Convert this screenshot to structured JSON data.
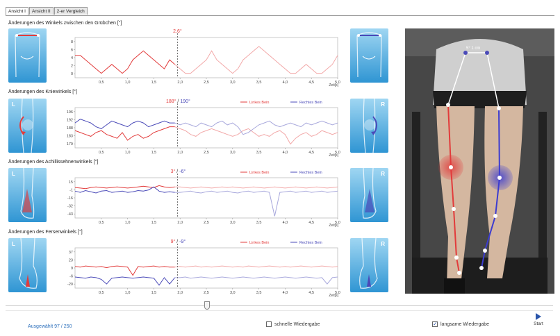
{
  "tabs": [
    {
      "label": "Ansicht I"
    },
    {
      "label": "Ansicht II"
    },
    {
      "label": "2-er Vergleich"
    }
  ],
  "panels": [
    {
      "title": "Änderungen des Winkels zwischen den Grübchen [°]",
      "cursor_value": "2,6°",
      "left_letter": "",
      "right_letter": "",
      "legend": []
    },
    {
      "title": "Änderungen des Kniewinkels [°]",
      "cursor_value_left": "188°",
      "cursor_value_sep": " / ",
      "cursor_value_right": "190°",
      "left_letter": "L",
      "right_letter": "R",
      "legend": [
        "Linkes Bein",
        "Rechtes Bein"
      ]
    },
    {
      "title": "Änderungen des Achillissehnenwinkels [°]",
      "cursor_value_left": "3°",
      "cursor_value_sep": " / ",
      "cursor_value_right": "-6°",
      "left_letter": "L",
      "right_letter": "R",
      "legend": [
        "Linkes Bein",
        "Rechtes Bein"
      ]
    },
    {
      "title": "Änderungen des Fersenwinkels [°]",
      "cursor_value_left": "9°",
      "cursor_value_sep": " / ",
      "cursor_value_right": "-9°",
      "left_letter": "L",
      "right_letter": "R",
      "legend": [
        "Linkes Bein",
        "Rechtes Bein"
      ]
    }
  ],
  "x_axis": {
    "ticks": [
      "0,5",
      "1,0",
      "1,5",
      "2,0",
      "2,5",
      "3,0",
      "3,5",
      "4,0",
      "4,5",
      "5,0"
    ],
    "unit": "Zeit[s]"
  },
  "y_ticks": [
    [
      "8",
      "6",
      "4",
      "2",
      "0"
    ],
    [
      "196",
      "192",
      "188",
      "183",
      "179"
    ],
    [
      "15",
      "-1",
      "-16",
      "-32",
      "-43"
    ],
    [
      "37",
      "23",
      "9",
      "-6",
      "-20"
    ]
  ],
  "photo": {
    "measure_label": "5°   1 cm"
  },
  "bottom": {
    "selected_label": "Ausgewählt",
    "selected_value": "97 / 250",
    "fast_playback": "schnelle Wiedergabe",
    "fast_checked": false,
    "slow_playback": "langsame Wiedergabe",
    "slow_checked": true,
    "start_label": "Start"
  },
  "colors": {
    "left": "#e23b3b",
    "right": "#4a4ab8",
    "left_faded": "#f2a8a8",
    "right_faded": "#a8a8dc",
    "thumb_bg": "#3aa4dc",
    "selected_label": "#2a6ebb"
  },
  "chart_data": [
    {
      "type": "line",
      "title": "Änderungen des Winkels zwischen den Grübchen [°]",
      "xlabel": "Zeit[s]",
      "xlim": [
        0,
        5
      ],
      "ylim": [
        0,
        9
      ],
      "cursor_x": 1.95,
      "series": [
        {
          "x": [
            0,
            0.1,
            0.2,
            0.3,
            0.4,
            0.5,
            0.6,
            0.7,
            0.8,
            0.9,
            1.0,
            1.1,
            1.2,
            1.3,
            1.4,
            1.5,
            1.6,
            1.7,
            1.8,
            1.9,
            2.0,
            2.1,
            2.2,
            2.3,
            2.4,
            2.5,
            2.6,
            2.7,
            2.8,
            2.9,
            3.0,
            3.1,
            3.2,
            3.3,
            3.4,
            3.5,
            3.6,
            3.7,
            3.8,
            3.9,
            4.0,
            4.1,
            4.2,
            4.3,
            4.4,
            4.5,
            4.6,
            4.7,
            4.8,
            4.9,
            5.0
          ],
          "values": [
            5,
            5,
            4,
            3,
            2,
            1,
            2,
            3,
            2,
            1,
            2,
            4,
            5,
            6,
            5,
            4,
            3,
            2,
            4,
            3,
            2,
            1,
            1,
            2,
            3,
            4,
            6,
            4,
            3,
            2,
            1,
            2,
            4,
            5,
            6,
            7,
            6,
            5,
            4,
            3,
            2,
            1,
            1,
            2,
            3,
            2,
            1,
            1,
            2,
            3,
            5
          ]
        }
      ]
    },
    {
      "type": "line",
      "title": "Änderungen des Kniewinkels [°]",
      "xlabel": "Zeit[s]",
      "xlim": [
        0,
        5
      ],
      "ylim": [
        177,
        198
      ],
      "cursor_x": 1.95,
      "series": [
        {
          "name": "Linkes Bein",
          "x": [
            0,
            0.1,
            0.2,
            0.3,
            0.4,
            0.5,
            0.6,
            0.7,
            0.8,
            0.9,
            1.0,
            1.1,
            1.2,
            1.3,
            1.4,
            1.5,
            1.6,
            1.7,
            1.8,
            1.9,
            2.0,
            2.1,
            2.2,
            2.3,
            2.4,
            2.5,
            2.6,
            2.7,
            2.8,
            2.9,
            3.0,
            3.1,
            3.2,
            3.3,
            3.4,
            3.5,
            3.6,
            3.7,
            3.8,
            3.9,
            4.0,
            4.1,
            4.2,
            4.3,
            4.4,
            4.5,
            4.6,
            4.7,
            4.8,
            4.9,
            5.0
          ],
          "values": [
            186,
            185,
            184,
            183,
            185,
            186,
            184,
            183,
            182,
            185,
            181,
            183,
            184,
            182,
            183,
            185,
            186,
            187,
            188,
            188,
            187,
            186,
            184,
            183,
            185,
            186,
            187,
            186,
            185,
            184,
            183,
            184,
            186,
            187,
            185,
            183,
            184,
            183,
            185,
            186,
            184,
            179,
            182,
            184,
            185,
            183,
            184,
            186,
            185,
            184,
            185
          ]
        },
        {
          "name": "Rechtes Bein",
          "x": [
            0,
            0.1,
            0.2,
            0.3,
            0.4,
            0.5,
            0.6,
            0.7,
            0.8,
            0.9,
            1.0,
            1.1,
            1.2,
            1.3,
            1.4,
            1.5,
            1.6,
            1.7,
            1.8,
            1.9,
            2.0,
            2.1,
            2.2,
            2.3,
            2.4,
            2.5,
            2.6,
            2.7,
            2.8,
            2.9,
            3.0,
            3.1,
            3.2,
            3.3,
            3.4,
            3.5,
            3.6,
            3.7,
            3.8,
            3.9,
            4.0,
            4.1,
            4.2,
            4.3,
            4.4,
            4.5,
            4.6,
            4.7,
            4.8,
            4.9,
            5.0
          ],
          "values": [
            190,
            192,
            191,
            190,
            188,
            187,
            189,
            191,
            190,
            189,
            188,
            190,
            191,
            190,
            188,
            189,
            190,
            191,
            190,
            190,
            189,
            190,
            189,
            188,
            190,
            189,
            188,
            190,
            191,
            189,
            190,
            188,
            184,
            185,
            187,
            189,
            190,
            191,
            189,
            188,
            189,
            190,
            189,
            188,
            190,
            189,
            190,
            191,
            190,
            189,
            190
          ]
        }
      ]
    },
    {
      "type": "line",
      "title": "Änderungen des Achillissehnenwinkels [°]",
      "xlabel": "Zeit[s]",
      "xlim": [
        0,
        5
      ],
      "ylim": [
        -48,
        18
      ],
      "cursor_x": 1.95,
      "series": [
        {
          "name": "Linkes Bein",
          "x": [
            0,
            0.1,
            0.2,
            0.3,
            0.4,
            0.5,
            0.6,
            0.7,
            0.8,
            0.9,
            1.0,
            1.1,
            1.2,
            1.3,
            1.4,
            1.5,
            1.6,
            1.7,
            1.8,
            1.9,
            2.0,
            2.1,
            2.2,
            2.3,
            2.4,
            2.5,
            2.6,
            2.7,
            2.8,
            2.9,
            3.0,
            3.1,
            3.2,
            3.3,
            3.4,
            3.5,
            3.6,
            3.7,
            3.8,
            3.9,
            4.0,
            4.1,
            4.2,
            4.3,
            4.4,
            4.5,
            4.6,
            4.7,
            4.8,
            4.9,
            5.0
          ],
          "values": [
            2,
            1,
            0,
            2,
            3,
            2,
            1,
            2,
            3,
            2,
            1,
            2,
            3,
            4,
            3,
            2,
            5,
            3,
            2,
            3,
            3,
            2,
            1,
            2,
            3,
            2,
            1,
            2,
            3,
            2,
            3,
            2,
            1,
            2,
            3,
            2,
            1,
            2,
            3,
            2,
            1,
            2,
            3,
            2,
            1,
            2,
            3,
            2,
            1,
            2,
            3
          ]
        },
        {
          "name": "Rechtes Bein",
          "x": [
            0,
            0.1,
            0.2,
            0.3,
            0.4,
            0.5,
            0.6,
            0.7,
            0.8,
            0.9,
            1.0,
            1.1,
            1.2,
            1.3,
            1.4,
            1.5,
            1.6,
            1.7,
            1.8,
            1.9,
            2.0,
            2.1,
            2.2,
            2.3,
            2.4,
            2.5,
            2.6,
            2.7,
            2.8,
            2.9,
            3.0,
            3.1,
            3.2,
            3.3,
            3.4,
            3.5,
            3.6,
            3.7,
            3.8,
            3.9,
            4.0,
            4.1,
            4.2,
            4.3,
            4.4,
            4.5,
            4.6,
            4.7,
            4.8,
            4.9,
            5.0
          ],
          "values": [
            -4,
            -6,
            -3,
            -5,
            -7,
            -4,
            -3,
            -6,
            -5,
            -4,
            -6,
            -5,
            -3,
            -4,
            -2,
            3,
            -4,
            -6,
            -5,
            -6,
            -6,
            -5,
            -4,
            -6,
            -7,
            -5,
            -4,
            -6,
            -5,
            -4,
            -6,
            -7,
            -5,
            -4,
            -6,
            -5,
            -4,
            -6,
            -45,
            -6,
            -5,
            -4,
            -6,
            -5,
            -4,
            -6,
            -5,
            -4,
            -6,
            -5,
            -4
          ]
        }
      ]
    },
    {
      "type": "line",
      "title": "Änderungen des Fersenwinkels [°]",
      "xlabel": "Zeit[s]",
      "xlim": [
        0,
        5
      ],
      "ylim": [
        -27,
        42
      ],
      "cursor_x": 1.95,
      "series": [
        {
          "name": "Linkes Bein",
          "x": [
            0,
            0.1,
            0.2,
            0.3,
            0.4,
            0.5,
            0.6,
            0.7,
            0.8,
            0.9,
            1.0,
            1.1,
            1.2,
            1.3,
            1.4,
            1.5,
            1.6,
            1.7,
            1.8,
            1.9,
            2.0,
            2.1,
            2.2,
            2.3,
            2.4,
            2.5,
            2.6,
            2.7,
            2.8,
            2.9,
            3.0,
            3.1,
            3.2,
            3.3,
            3.4,
            3.5,
            3.6,
            3.7,
            3.8,
            3.9,
            4.0,
            4.1,
            4.2,
            4.3,
            4.4,
            4.5,
            4.6,
            4.7,
            4.8,
            4.9,
            5.0
          ],
          "values": [
            10,
            9,
            11,
            10,
            9,
            10,
            8,
            10,
            11,
            10,
            9,
            -5,
            10,
            9,
            10,
            11,
            9,
            10,
            9,
            9,
            10,
            9,
            10,
            11,
            9,
            10,
            9,
            10,
            11,
            10,
            9,
            10,
            9,
            11,
            10,
            9,
            10,
            11,
            10,
            9,
            10,
            9,
            10,
            11,
            10,
            9,
            10,
            11,
            10,
            9,
            10
          ]
        },
        {
          "name": "Rechtes Bein",
          "x": [
            0,
            0.1,
            0.2,
            0.3,
            0.4,
            0.5,
            0.6,
            0.7,
            0.8,
            0.9,
            1.0,
            1.1,
            1.2,
            1.3,
            1.4,
            1.5,
            1.6,
            1.7,
            1.8,
            1.9,
            2.0,
            2.1,
            2.2,
            2.3,
            2.4,
            2.5,
            2.6,
            2.7,
            2.8,
            2.9,
            3.0,
            3.1,
            3.2,
            3.3,
            3.4,
            3.5,
            3.6,
            3.7,
            3.8,
            3.9,
            4.0,
            4.1,
            4.2,
            4.3,
            4.4,
            4.5,
            4.6,
            4.7,
            4.8,
            4.9,
            5.0
          ],
          "values": [
            -8,
            -9,
            -10,
            -8,
            -9,
            -12,
            -20,
            -10,
            -9,
            -8,
            -9,
            -10,
            -9,
            -8,
            -9,
            -10,
            -22,
            -9,
            -20,
            -9,
            -9,
            -8,
            -10,
            -9,
            -8,
            -9,
            -10,
            -9,
            -8,
            -9,
            -10,
            -9,
            -8,
            -9,
            -10,
            -9,
            -8,
            -9,
            -10,
            -9,
            -8,
            -9,
            -10,
            -9,
            -8,
            -9,
            -10,
            -9,
            -20,
            -9,
            -8
          ]
        }
      ]
    }
  ]
}
